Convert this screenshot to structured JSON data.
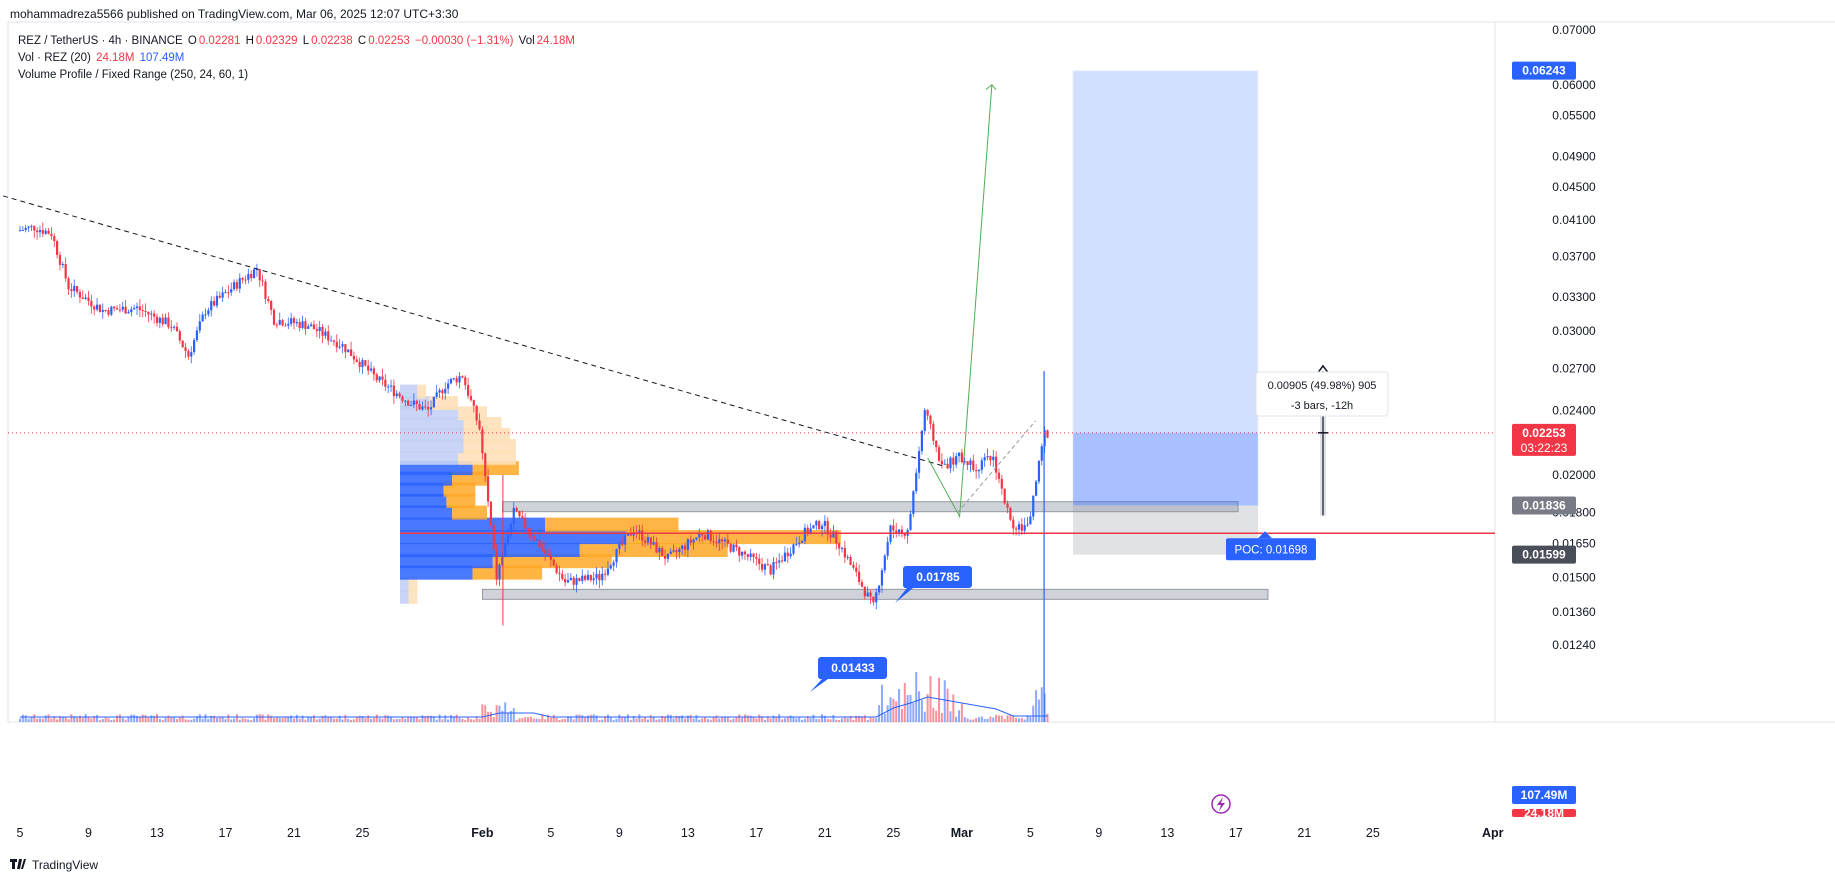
{
  "header": {
    "published_by": "mohammadreza5566 published on TradingView.com, Mar 06, 2025 12:07 UTC+3:30"
  },
  "legend": {
    "symbol": "REZ / TetherUS · 4h · BINANCE",
    "open_label": "O",
    "open": "0.02281",
    "high_label": "H",
    "high": "0.02329",
    "low_label": "L",
    "low": "0.02238",
    "close_label": "C",
    "close": "0.02253",
    "change": "−0.00030 (−1.31%)",
    "vol_label": "Vol",
    "vol": "24.18M",
    "volume_line": "Vol · REZ (20)",
    "volume_value": "24.18M",
    "volume_ma": "107.49M",
    "profile_line": "Volume Profile / Fixed Range (250, 24, 60, 1)"
  },
  "footer": {
    "brand": "TradingView"
  },
  "colors": {
    "up": "#2962ff",
    "down": "#f23645",
    "accent": "#2962ff",
    "profile_blue": "#2962ff",
    "profile_orange": "#ffa726"
  },
  "chart_data": {
    "type": "candlestick",
    "symbol": "REZUSDT",
    "timeframe": "4h",
    "exchange": "BINANCE",
    "yscale": "log",
    "ylim": [
      0.0115,
      0.0705
    ],
    "y_ticks": [
      "0.07000",
      "0.06000",
      "0.05500",
      "0.04900",
      "0.04500",
      "0.04100",
      "0.03700",
      "0.03300",
      "0.03000",
      "0.02700",
      "0.02400",
      "0.02000",
      "0.01800",
      "0.01650",
      "0.01500",
      "0.01360",
      "0.01240"
    ],
    "x_ticks": [
      "5",
      "9",
      "13",
      "17",
      "21",
      "25",
      "Feb",
      "5",
      "9",
      "13",
      "17",
      "21",
      "25",
      "Mar",
      "5",
      "9",
      "13",
      "17",
      "21",
      "25",
      "Apr"
    ],
    "price_path": [
      [
        "Jan 5",
        0.0398
      ],
      [
        "Jan 6",
        0.0402
      ],
      [
        "Jan 7",
        0.0395
      ],
      [
        "Jan 8",
        0.034
      ],
      [
        "Jan 10",
        0.0318
      ],
      [
        "Jan 12",
        0.032
      ],
      [
        "Jan 14",
        0.0305
      ],
      [
        "Jan 15",
        0.028
      ],
      [
        "Jan 16",
        0.0318
      ],
      [
        "Jan 18",
        0.0345
      ],
      [
        "Jan 19",
        0.0358
      ],
      [
        "Jan 20",
        0.031
      ],
      [
        "Jan 22",
        0.0305
      ],
      [
        "Jan 24",
        0.0288
      ],
      [
        "Jan 25",
        0.0275
      ],
      [
        "Jan 26",
        0.0262
      ],
      [
        "Jan 28",
        0.0245
      ],
      [
        "Jan 29",
        0.024
      ],
      [
        "Jan 30",
        0.0258
      ],
      [
        "Jan 31",
        0.0265
      ],
      [
        "Feb 1",
        0.0228
      ],
      [
        "Feb 2",
        0.015
      ],
      [
        "Feb 3",
        0.018
      ],
      [
        "Feb 4",
        0.017
      ],
      [
        "Feb 6",
        0.0148
      ],
      [
        "Feb 8",
        0.015
      ],
      [
        "Feb 10",
        0.0172
      ],
      [
        "Feb 12",
        0.0158
      ],
      [
        "Feb 14",
        0.017
      ],
      [
        "Feb 16",
        0.0162
      ],
      [
        "Feb 18",
        0.0153
      ],
      [
        "Feb 20",
        0.017
      ],
      [
        "Feb 21",
        0.0175
      ],
      [
        "Feb 22",
        0.0165
      ],
      [
        "Feb 24",
        0.0138
      ],
      [
        "Feb 25",
        0.0172
      ],
      [
        "Feb 26",
        0.017
      ],
      [
        "Feb 27",
        0.024
      ],
      [
        "Feb 28",
        0.0205
      ],
      [
        "Mar 1",
        0.021
      ],
      [
        "Mar 2",
        0.0205
      ],
      [
        "Mar 3",
        0.021
      ],
      [
        "Mar 4",
        0.0175
      ],
      [
        "Mar 5",
        0.0172
      ],
      [
        "Mar 6",
        0.0225
      ]
    ],
    "price_levels": [
      {
        "label": "0.06243",
        "kind": "target"
      },
      {
        "label": "0.02253",
        "kind": "last_price",
        "countdown": "03:22:23"
      },
      {
        "label": "0.01836",
        "kind": "entry"
      },
      {
        "label": "0.01599",
        "kind": "stop"
      },
      {
        "label": "107.49M",
        "kind": "volume_ma"
      },
      {
        "label": "24.18M",
        "kind": "volume"
      }
    ],
    "annotations": [
      {
        "type": "callout",
        "text": "0.01785",
        "price": 0.01785
      },
      {
        "type": "callout",
        "text": "0.01433",
        "price": 0.01433
      },
      {
        "type": "label",
        "text": "POC: 0.01698",
        "price": 0.01698
      },
      {
        "type": "measure",
        "line1": "0.00905 (49.98%) 905",
        "line2": "-3 bars, -12h"
      },
      {
        "type": "support_zone",
        "low": 0.014,
        "high": 0.0143
      },
      {
        "type": "resistance_zone",
        "low": 0.0179,
        "high": 0.0183
      },
      {
        "type": "long_position",
        "entry": 0.01836,
        "target": 0.06243,
        "stop": 0.01599
      },
      {
        "type": "trendline",
        "style": "dashed",
        "from": [
          "Jan 3",
          0.0445
        ],
        "to": [
          "Feb 28",
          0.0205
        ]
      }
    ],
    "volume_profile": {
      "range": "Jan 24 – Feb 3",
      "rows": [
        {
          "price": 0.0142,
          "buy": 0.03,
          "sell": 0.03
        },
        {
          "price": 0.0147,
          "buy": 0.03,
          "sell": 0.03
        },
        {
          "price": 0.0152,
          "buy": 0.25,
          "sell": 0.24
        },
        {
          "price": 0.0157,
          "buy": 0.32,
          "sell": 0.41
        },
        {
          "price": 0.0162,
          "buy": 0.62,
          "sell": 0.51
        },
        {
          "price": 0.0168,
          "buy": 0.78,
          "sell": 0.74
        },
        {
          "price": 0.0174,
          "buy": 0.5,
          "sell": 0.46
        },
        {
          "price": 0.018,
          "buy": 0.18,
          "sell": 0.12
        },
        {
          "price": 0.0186,
          "buy": 0.16,
          "sell": 0.1
        },
        {
          "price": 0.0192,
          "buy": 0.15,
          "sell": 0.11
        },
        {
          "price": 0.0198,
          "buy": 0.18,
          "sell": 0.12
        },
        {
          "price": 0.0204,
          "buy": 0.25,
          "sell": 0.16
        },
        {
          "price": 0.021,
          "buy": 0.2,
          "sell": 0.2
        },
        {
          "price": 0.0217,
          "buy": 0.22,
          "sell": 0.18
        },
        {
          "price": 0.0224,
          "buy": 0.22,
          "sell": 0.16
        },
        {
          "price": 0.0231,
          "buy": 0.22,
          "sell": 0.13
        },
        {
          "price": 0.0238,
          "buy": 0.2,
          "sell": 0.1
        },
        {
          "price": 0.0245,
          "buy": 0.1,
          "sell": 0.1
        },
        {
          "price": 0.0253,
          "buy": 0.06,
          "sell": 0.03
        }
      ]
    }
  }
}
